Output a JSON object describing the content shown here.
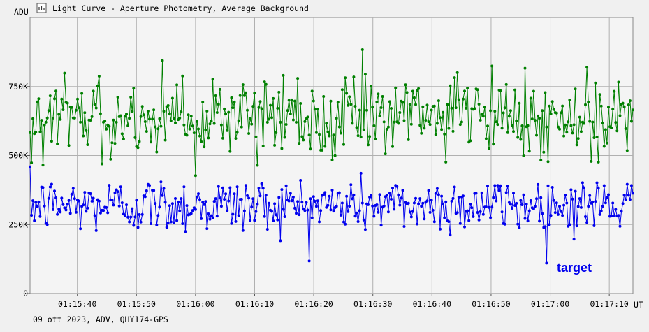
{
  "window": {
    "title": "Light Curve - Aperture Photometry, Average Background",
    "icon": "chart-icon"
  },
  "footer": {
    "info": "09 ott 2023, ADV, QHY174-GPS"
  },
  "chart_data": {
    "type": "line",
    "title": "",
    "xlabel": "UT",
    "ylabel": "ADU",
    "ylim": [
      0,
      1000000
    ],
    "yticks": [
      {
        "value": 0,
        "label": "0"
      },
      {
        "value": 250000,
        "label": "250K"
      },
      {
        "value": 500000,
        "label": "500K"
      },
      {
        "value": 750000,
        "label": "750K"
      }
    ],
    "xlim_seconds": [
      32,
      134
    ],
    "xticks": [
      {
        "t": 40,
        "label": "01:15:40"
      },
      {
        "t": 50,
        "label": "01:15:50"
      },
      {
        "t": 60,
        "label": "01:16:00"
      },
      {
        "t": 70,
        "label": "01:16:10"
      },
      {
        "t": 80,
        "label": "01:16:20"
      },
      {
        "t": 90,
        "label": "01:16:30"
      },
      {
        "t": 100,
        "label": "01:16:40"
      },
      {
        "t": 110,
        "label": "01:16:50"
      },
      {
        "t": 120,
        "label": "01:17:00"
      },
      {
        "t": 130,
        "label": "01:17:10"
      }
    ],
    "grid": true,
    "legend_position": "bottom-right",
    "series": [
      {
        "name": "target",
        "color": "#0000ee",
        "mean": 320000,
        "stdev": 50000,
        "x_start": 32,
        "x_end": 134,
        "n_points": 420
      },
      {
        "name": "",
        "color": "#008000",
        "mean": 640000,
        "stdev": 75000,
        "x_start": 32,
        "x_end": 134,
        "n_points": 420
      }
    ]
  }
}
